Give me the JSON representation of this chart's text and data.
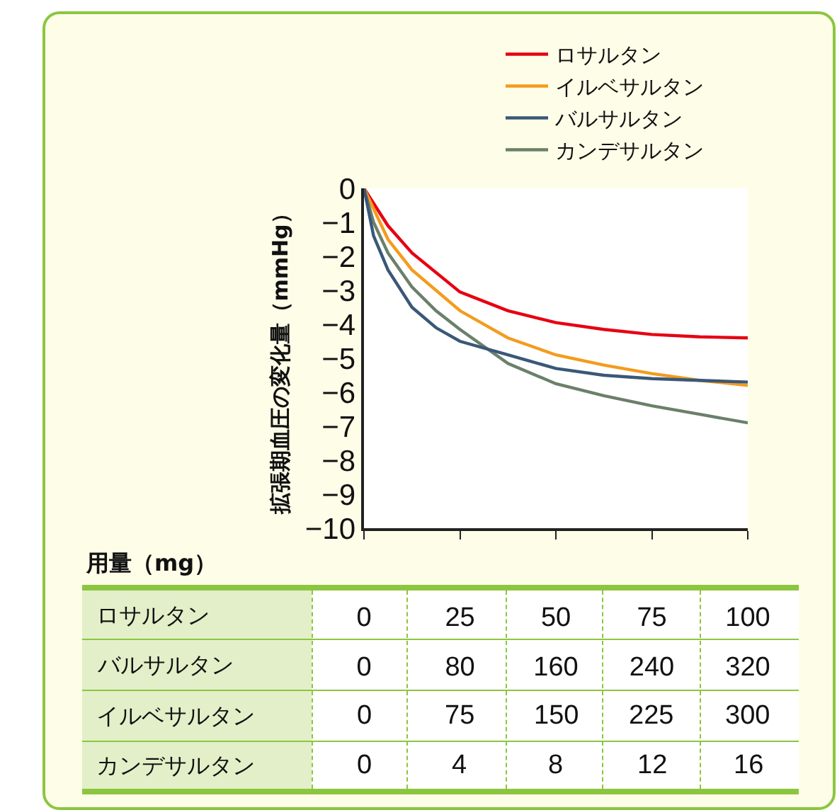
{
  "chart_data": {
    "type": "line",
    "ylabel": "拡張期血圧の変化量（mmHg）",
    "annotations": [
      "用量（mg）",
      "イルベサルタン",
      "0",
      "75",
      "150",
      "225",
      "300",
      "カンデサルタン",
      "0",
      "4",
      "8",
      "12",
      "16"
    ],
    "xlabel": "ロサルタン",
    "xlim": [
      0,
      100
    ],
    "xticks": [
      0,
      25,
      50,
      75,
      100
    ],
    "x2label": "バルサルタン",
    "x2lim": [
      0,
      320
    ],
    "x2ticks": [
      0,
      80,
      160,
      240,
      320
    ],
    "ylim": [
      -10,
      0
    ],
    "yticks": [
      {
        "value": 0,
        "label": "0"
      },
      {
        "value": -1,
        "label": "−1"
      },
      {
        "value": -2,
        "label": "−2"
      },
      {
        "value": -3,
        "label": "−3"
      },
      {
        "value": -4,
        "label": "−4"
      },
      {
        "value": -5,
        "label": "−5"
      },
      {
        "value": -6,
        "label": "−6"
      },
      {
        "value": -7,
        "label": "−7"
      },
      {
        "value": -8,
        "label": "−8"
      },
      {
        "value": -9,
        "label": "−9"
      },
      {
        "value": -10,
        "label": "−10"
      }
    ],
    "grid": false,
    "legend": "top right",
    "marker": "none",
    "line_style": "solid",
    "series": [
      {
        "name": "ロサルタン",
        "color": "#e60012",
        "x": [
          0,
          6.25,
          12.5,
          25,
          37.5,
          50,
          62.5,
          75,
          87.5,
          100
        ],
        "values": [
          0,
          -1.1,
          -1.9,
          -3.05,
          -3.6,
          -3.95,
          -4.15,
          -4.3,
          -4.37,
          -4.4
        ]
      },
      {
        "name": "イルベサルタン",
        "color": "#f39c1e",
        "x": [
          0,
          6.25,
          12.5,
          25,
          37.5,
          50,
          62.5,
          75,
          87.5,
          100
        ],
        "values": [
          0,
          -1.5,
          -2.4,
          -3.6,
          -4.4,
          -4.9,
          -5.2,
          -5.45,
          -5.65,
          -5.8
        ]
      },
      {
        "name": "バルサルタン",
        "color": "#3a5878",
        "axis": "x2",
        "x": [
          0,
          8,
          20,
          40,
          60,
          80,
          120,
          160,
          200,
          240,
          280,
          320
        ],
        "values": [
          0,
          -1.4,
          -2.4,
          -3.5,
          -4.1,
          -4.5,
          -4.9,
          -5.3,
          -5.5,
          -5.6,
          -5.65,
          -5.7
        ]
      },
      {
        "name": "カンデサルタン",
        "color": "#6b806a",
        "x": [
          0,
          2.5,
          6.25,
          12.5,
          18.75,
          25,
          31.25,
          37.5,
          50,
          62.5,
          75,
          87.5,
          100
        ],
        "values": [
          0,
          -1.0,
          -1.9,
          -2.9,
          -3.6,
          -4.15,
          -4.65,
          -5.15,
          -5.75,
          -6.1,
          -6.4,
          -6.65,
          -6.9
        ]
      }
    ]
  }
}
